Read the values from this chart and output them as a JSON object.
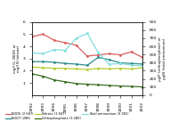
{
  "years": [
    1992,
    1993,
    1994,
    1995,
    1996,
    1997,
    1998,
    1999,
    2000,
    2001,
    2002
  ],
  "BOD5": [
    4.8,
    5.0,
    4.5,
    4.3,
    4.1,
    3.2,
    3.3,
    3.4,
    3.3,
    3.55,
    3.1
  ],
  "BOD7": [
    2.75,
    2.75,
    2.7,
    2.6,
    2.55,
    2.45,
    3.1,
    2.9,
    2.65,
    2.6,
    2.55
  ],
  "Nitrate": [
    2.3,
    2.25,
    2.2,
    2.2,
    2.15,
    2.1,
    2.2,
    2.15,
    2.2,
    2.15,
    2.25
  ],
  "Orthophosphate": [
    1.75,
    1.55,
    1.25,
    1.1,
    0.95,
    0.9,
    0.85,
    0.8,
    0.75,
    0.72,
    0.68
  ],
  "TotalAmmonium": [
    520,
    510,
    560,
    550,
    700,
    760,
    520,
    380,
    390,
    370,
    360
  ],
  "BOD5_color": "#d95f5f",
  "BOD7_color": "#2e8b8b",
  "Nitrate_color": "#b8cc30",
  "Orthophosphate_color": "#3a6e1e",
  "TotalAmmonium_color": "#80dede",
  "ylabel_left": "mg/l O₂ (BOD) or\nmg/l N (nitrate)",
  "ylabel_right": "μg/P (orthophosphate) or\nμg/N (total ammonium)",
  "ylim_left": [
    0,
    6
  ],
  "ylim_right": [
    0,
    900
  ],
  "yticks_left": [
    1,
    2,
    3,
    4,
    5,
    6
  ],
  "yticks_right": [
    0,
    100,
    200,
    300,
    400,
    500,
    600,
    700,
    800,
    900
  ],
  "legend_BOD5": "BOD5 (2 587)",
  "legend_BOD7": "BOD7 (288)",
  "legend_Nitrate": "Nitrate (3 047)",
  "legend_Orthophosphate": "Orthophosphate (3 280)",
  "legend_TotalAmmonium": "Total ammonium (3 281)",
  "bg_color": "#ffffff"
}
